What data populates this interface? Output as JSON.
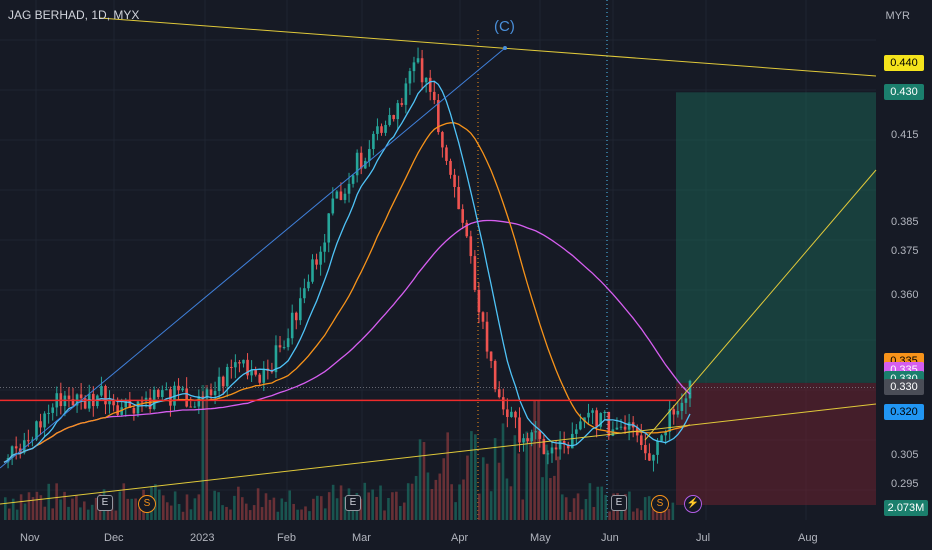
{
  "title": "JAG BERHAD, 1D, MYX",
  "currency": "MYR",
  "wave_label": "(C)",
  "price_ticks": [
    "0.440",
    "0.415",
    "0.385",
    "0.375",
    "0.360",
    "0.305",
    "0.295"
  ],
  "badges": [
    {
      "label": "0.440",
      "price": 0.44,
      "bg": "#f5e41c",
      "fg": "#000000"
    },
    {
      "label": "0.430",
      "price": 0.43,
      "bg": "#1b7f6d",
      "fg": "#ffffff"
    },
    {
      "label": "0.335",
      "price": 0.3375,
      "bg": "#f7931a",
      "fg": "#000000"
    },
    {
      "label": "0.335",
      "price": 0.3345,
      "bg": "#d65ef0",
      "fg": "#ffffff"
    },
    {
      "label": "0.330",
      "price": 0.3315,
      "bg": "#1b7f6d",
      "fg": "#ffffff"
    },
    {
      "label": "0.330",
      "price": 0.3285,
      "bg": "#4a4d57",
      "fg": "#ffffff"
    },
    {
      "label": "0.320",
      "price": 0.32,
      "bg": "#2196f3",
      "fg": "#000000"
    },
    {
      "label": "2.073M",
      "price": 0.29,
      "bg": "#1b7f6d",
      "fg": "#ffffff"
    }
  ],
  "x_ticks": [
    "Nov",
    "Dec",
    "2023",
    "Feb",
    "Mar",
    "Apr",
    "May",
    "Jun",
    "Jul",
    "Aug"
  ],
  "events": [
    {
      "type": "E",
      "label": "E"
    },
    {
      "type": "S",
      "label": "S"
    },
    {
      "type": "E",
      "label": "E"
    },
    {
      "type": "E",
      "label": "E"
    },
    {
      "type": "S",
      "label": "S"
    },
    {
      "type": "L",
      "label": "⚡"
    }
  ],
  "chart_data": {
    "type": "candlestick",
    "title": "JAG BERHAD, 1D, MYX",
    "y_axis_unit": "MYR",
    "ylim": [
      0.288,
      0.448
    ],
    "x_range": [
      "Oct 2022",
      "Aug 2023"
    ],
    "last_price": 0.33,
    "volume_last": "2.073M",
    "series": [
      {
        "name": "close_path",
        "values": [
          0.303,
          0.308,
          0.318,
          0.326,
          0.323,
          0.327,
          0.322,
          0.324,
          0.326,
          0.325,
          0.322,
          0.33,
          0.338,
          0.333,
          0.34,
          0.355,
          0.375,
          0.395,
          0.405,
          0.417,
          0.425,
          0.44,
          0.425,
          0.395,
          0.365,
          0.33,
          0.315,
          0.31,
          0.306,
          0.31,
          0.32,
          0.314,
          0.318,
          0.305,
          0.32,
          0.33
        ]
      }
    ],
    "ma_fast_color": "#4fc3f7",
    "ma_mid_color": "#f7931a",
    "ma_slow_color": "#d65ef0",
    "position": {
      "entry": 0.33,
      "target": 0.43,
      "stop": 0.288
    },
    "colors": {
      "up": "#26a69a",
      "down": "#ef5350",
      "bg": "#161a25"
    }
  }
}
